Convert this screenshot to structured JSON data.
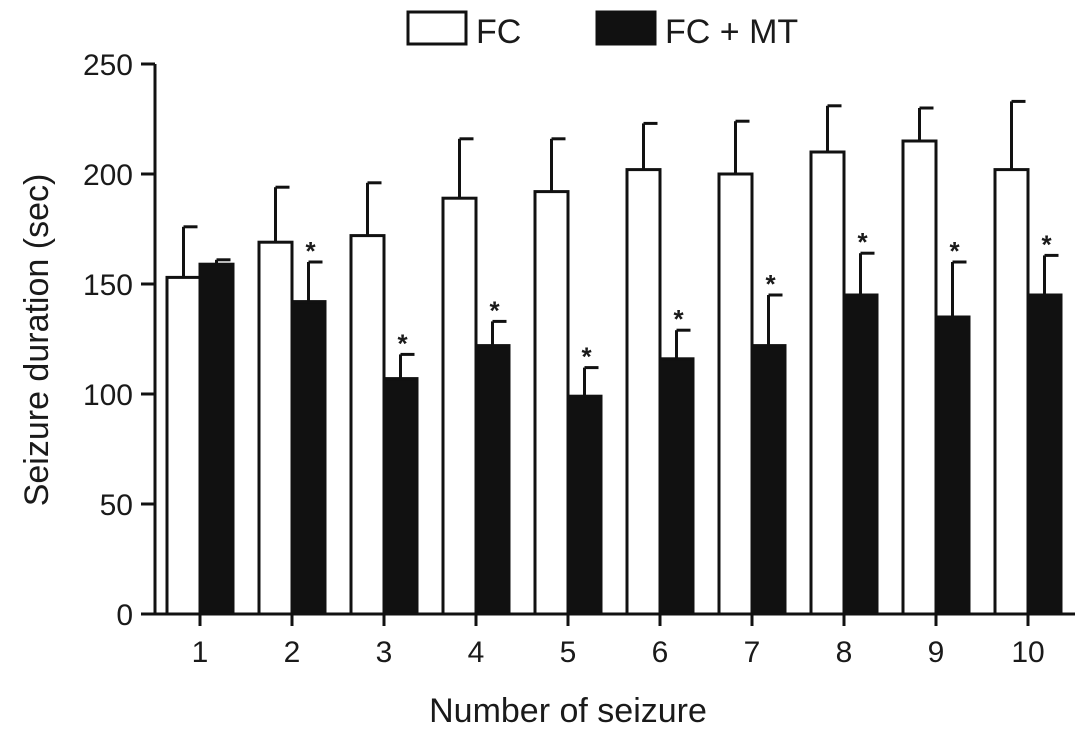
{
  "chart_data": {
    "type": "bar",
    "xlabel": "Number of seizure",
    "ylabel": "Seizure duration (sec)",
    "ylim": [
      0,
      250
    ],
    "yticks": [
      0,
      50,
      100,
      150,
      200,
      250
    ],
    "categories": [
      "1",
      "2",
      "3",
      "4",
      "5",
      "6",
      "7",
      "8",
      "9",
      "10"
    ],
    "series": [
      {
        "name": "FC",
        "color": "#ffffff",
        "values": [
          153,
          169,
          172,
          189,
          192,
          202,
          200,
          210,
          215,
          202
        ],
        "error": [
          23,
          25,
          24,
          27,
          24,
          21,
          24,
          21,
          15,
          31
        ]
      },
      {
        "name": "FC + MT",
        "color": "#111111",
        "values": [
          159,
          142,
          107,
          122,
          99,
          116,
          122,
          145,
          135,
          145
        ],
        "error": [
          2,
          18,
          11,
          11,
          13,
          13,
          23,
          19,
          25,
          18
        ]
      }
    ],
    "significance": [
      "",
      "*",
      "*",
      "*",
      "*",
      "*",
      "*",
      "*",
      "*",
      "*"
    ],
    "legend_position": "top-center",
    "grid": false
  }
}
